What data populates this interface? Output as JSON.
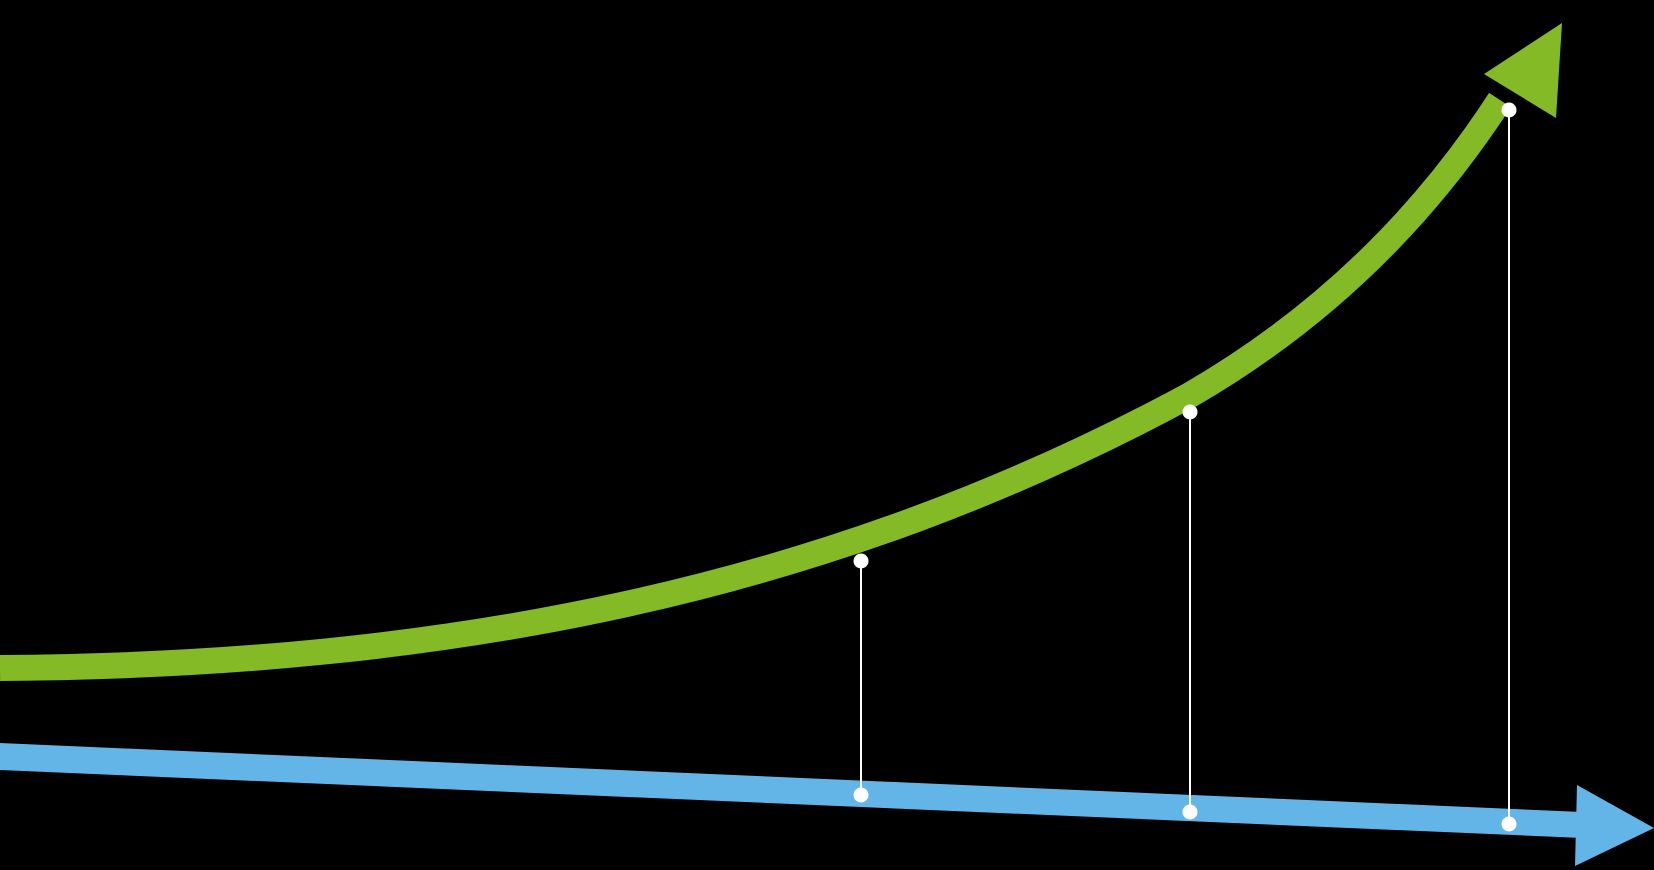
{
  "colors": {
    "background": "#000000",
    "growth_arrow": "#83BA26",
    "baseline_arrow": "#63B4E7",
    "connector": "#FFFFFF",
    "marker": "#FFFFFF"
  },
  "icons": {
    "growth_arrowhead": "arrowhead-icon",
    "baseline_arrowhead": "arrowhead-icon",
    "marker": "dot-icon"
  },
  "connectors": [
    {
      "id": "connector-1"
    },
    {
      "id": "connector-2"
    },
    {
      "id": "connector-3"
    }
  ]
}
